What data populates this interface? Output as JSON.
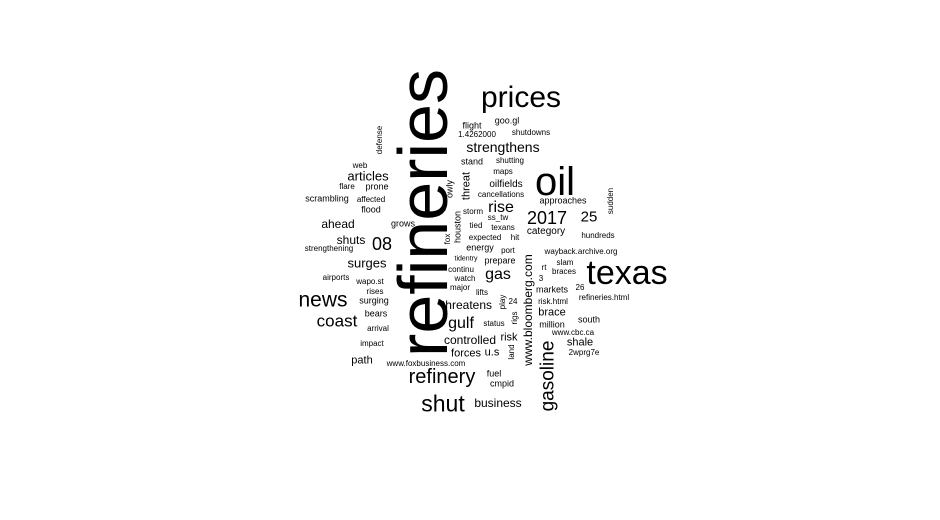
{
  "text_color": "#000000",
  "background_color": "#ffffff",
  "words": [
    "refineries",
    "oil",
    "texas",
    "prices",
    "shut",
    "news",
    "refinery",
    "gasoline",
    "2017",
    "08",
    "coast",
    "gulf",
    "rise",
    "gas",
    "strengthens",
    "25",
    "www.bloomberg.com",
    "articles",
    "surges",
    "ahead",
    "shuts",
    "threatens",
    "business",
    "controlled",
    "forces",
    "u.s",
    "risk",
    "path",
    "brace",
    "shale",
    "oilfields",
    "fuel",
    "cmpid",
    "threat",
    "houston",
    "owly",
    "approaches",
    "category",
    "hundreds",
    "wayback.archive.org",
    "slam",
    "braces",
    "rt",
    "markets",
    "26",
    "risk.html",
    "refineries.html",
    "million",
    "south",
    "www.cbc.ca",
    "2wprg7e",
    "www.foxbusiness.com",
    "impact",
    "arrival",
    "bears",
    "surging",
    "rises",
    "wapo.st",
    "airports",
    "strengthening",
    "scrambling",
    "affected",
    "flood",
    "grows",
    "flare",
    "prone",
    "web",
    "defense",
    "flight",
    "goo.gl",
    "1.4262000",
    "shutdowns",
    "stand",
    "shutting",
    "maps",
    "cancellations",
    "storm",
    "ss_tw",
    "tied",
    "texans",
    "expected",
    "hit",
    "energy",
    "port",
    "tidentry",
    "prepare",
    "continu",
    "watch",
    "3",
    "major",
    "lifts",
    "play",
    "24",
    "status",
    "rigs",
    "land",
    "sudden",
    "fox",
    "4"
  ]
}
